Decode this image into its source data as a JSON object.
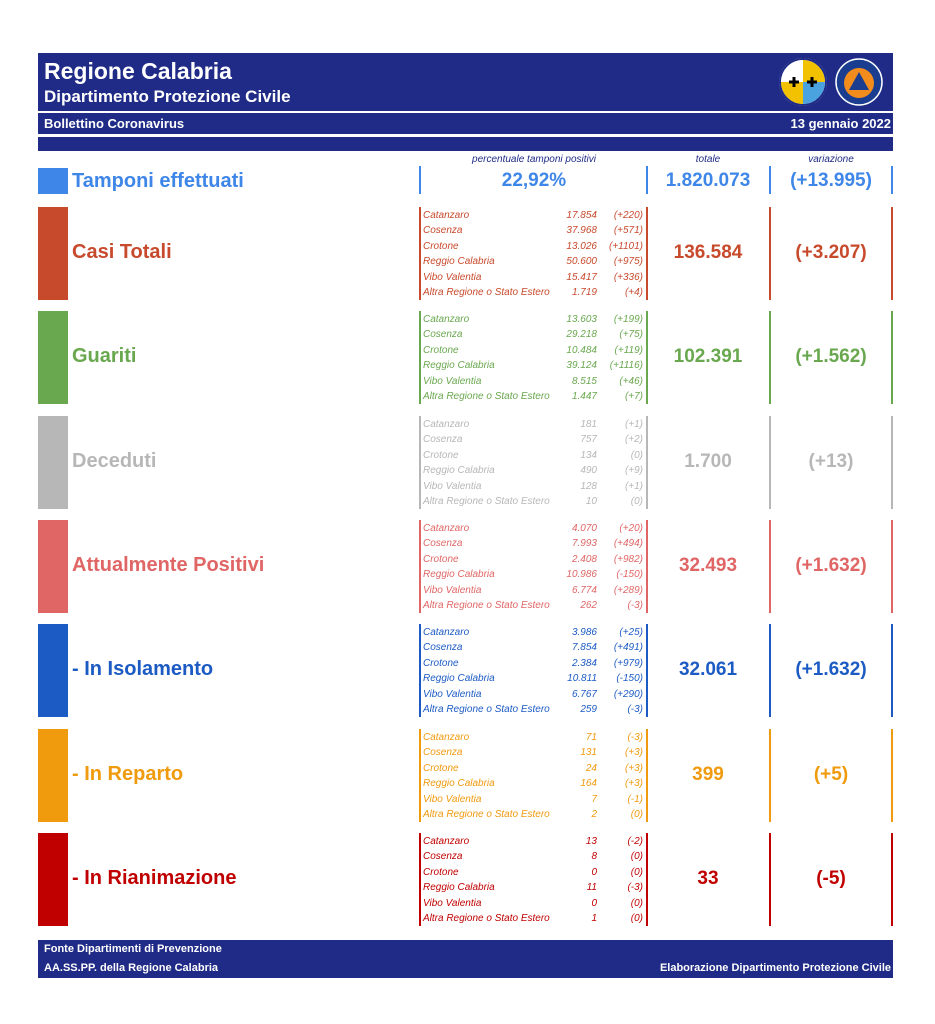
{
  "header": {
    "title": "Regione Calabria",
    "subtitle": "Dipartimento Protezione Civile",
    "bulletin": "Bollettino Coronavirus",
    "date": "13 gennaio 2022",
    "logo_pc_text": "PROTEZIONE CIVILE Regione Calabria"
  },
  "columns": {
    "pct_header": "percentuale tamponi positivi",
    "total_header": "totale",
    "var_header": "variazione"
  },
  "tamponi": {
    "label": "Tamponi effettuati",
    "percent": "22,92%",
    "total": "1.820.073",
    "variation": "(+13.995)",
    "color": "#3e86e8"
  },
  "rows": [
    {
      "label": "Casi Totali",
      "color": "#c84a2c",
      "total": "136.584",
      "variation": "(+3.207)",
      "provinces": [
        {
          "name": "Catanzaro",
          "value": "17.854",
          "change": "(+220)"
        },
        {
          "name": "Cosenza",
          "value": "37.968",
          "change": "(+571)"
        },
        {
          "name": "Crotone",
          "value": "13.026",
          "change": "(+1101)"
        },
        {
          "name": "Reggio Calabria",
          "value": "50.600",
          "change": "(+975)"
        },
        {
          "name": "Vibo Valentia",
          "value": "15.417",
          "change": "(+336)"
        },
        {
          "name": "Altra Regione o Stato Estero",
          "value": "1.719",
          "change": "(+4)"
        }
      ]
    },
    {
      "label": "Guariti",
      "color": "#6aa84f",
      "total": "102.391",
      "variation": "(+1.562)",
      "provinces": [
        {
          "name": "Catanzaro",
          "value": "13.603",
          "change": "(+199)"
        },
        {
          "name": "Cosenza",
          "value": "29.218",
          "change": "(+75)"
        },
        {
          "name": "Crotone",
          "value": "10.484",
          "change": "(+119)"
        },
        {
          "name": "Reggio Calabria",
          "value": "39.124",
          "change": "(+1116)"
        },
        {
          "name": "Vibo Valentia",
          "value": "8.515",
          "change": "(+46)"
        },
        {
          "name": "Altra Regione o Stato Estero",
          "value": "1.447",
          "change": "(+7)"
        }
      ]
    },
    {
      "label": "Deceduti",
      "color": "#b7b7b7",
      "total": "1.700",
      "variation": "(+13)",
      "provinces": [
        {
          "name": "Catanzaro",
          "value": "181",
          "change": "(+1)"
        },
        {
          "name": "Cosenza",
          "value": "757",
          "change": "(+2)"
        },
        {
          "name": "Crotone",
          "value": "134",
          "change": "(0)"
        },
        {
          "name": "Reggio Calabria",
          "value": "490",
          "change": "(+9)"
        },
        {
          "name": "Vibo Valentia",
          "value": "128",
          "change": "(+1)"
        },
        {
          "name": "Altra Regione o Stato Estero",
          "value": "10",
          "change": "(0)"
        }
      ]
    },
    {
      "label": "Attualmente Positivi",
      "color": "#e06666",
      "total": "32.493",
      "variation": "(+1.632)",
      "provinces": [
        {
          "name": "Catanzaro",
          "value": "4.070",
          "change": "(+20)"
        },
        {
          "name": "Cosenza",
          "value": "7.993",
          "change": "(+494)"
        },
        {
          "name": "Crotone",
          "value": "2.408",
          "change": "(+982)"
        },
        {
          "name": "Reggio Calabria",
          "value": "10.986",
          "change": "(-150)"
        },
        {
          "name": "Vibo Valentia",
          "value": "6.774",
          "change": "(+289)"
        },
        {
          "name": "Altra Regione o Stato Estero",
          "value": "262",
          "change": "(-3)"
        }
      ]
    },
    {
      "label": "- In Isolamento",
      "color": "#1c5bc4",
      "total": "32.061",
      "variation": "(+1.632)",
      "provinces": [
        {
          "name": "Catanzaro",
          "value": "3.986",
          "change": "(+25)"
        },
        {
          "name": "Cosenza",
          "value": "7.854",
          "change": "(+491)"
        },
        {
          "name": "Crotone",
          "value": "2.384",
          "change": "(+979)"
        },
        {
          "name": "Reggio Calabria",
          "value": "10.811",
          "change": "(-150)"
        },
        {
          "name": "Vibo Valentia",
          "value": "6.767",
          "change": "(+290)"
        },
        {
          "name": "Altra Regione o Stato Estero",
          "value": "259",
          "change": "(-3)"
        }
      ]
    },
    {
      "label": "- In Reparto",
      "color": "#f09a0e",
      "total": "399",
      "variation": "(+5)",
      "provinces": [
        {
          "name": "Catanzaro",
          "value": "71",
          "change": "(-3)"
        },
        {
          "name": "Cosenza",
          "value": "131",
          "change": "(+3)"
        },
        {
          "name": "Crotone",
          "value": "24",
          "change": "(+3)"
        },
        {
          "name": "Reggio Calabria",
          "value": "164",
          "change": "(+3)"
        },
        {
          "name": "Vibo Valentia",
          "value": "7",
          "change": "(-1)"
        },
        {
          "name": "Altra Regione o Stato Estero",
          "value": "2",
          "change": "(0)"
        }
      ]
    },
    {
      "label": "- In Rianimazione",
      "color": "#c00000",
      "total": "33",
      "variation": "(-5)",
      "provinces": [
        {
          "name": "Catanzaro",
          "value": "13",
          "change": "(-2)"
        },
        {
          "name": "Cosenza",
          "value": "8",
          "change": "(0)"
        },
        {
          "name": "Crotone",
          "value": "0",
          "change": "(0)"
        },
        {
          "name": "Reggio Calabria",
          "value": "11",
          "change": "(-3)"
        },
        {
          "name": "Vibo Valentia",
          "value": "0",
          "change": "(0)"
        },
        {
          "name": "Altra Regione o Stato Estero",
          "value": "1",
          "change": "(0)"
        }
      ]
    }
  ],
  "footer": {
    "source_line1": "Fonte Dipartimenti di Prevenzione",
    "source_line2": "AA.SS.PP.  della Regione Calabria",
    "elaboration": "Elaborazione Dipartimento Protezione Civile"
  }
}
